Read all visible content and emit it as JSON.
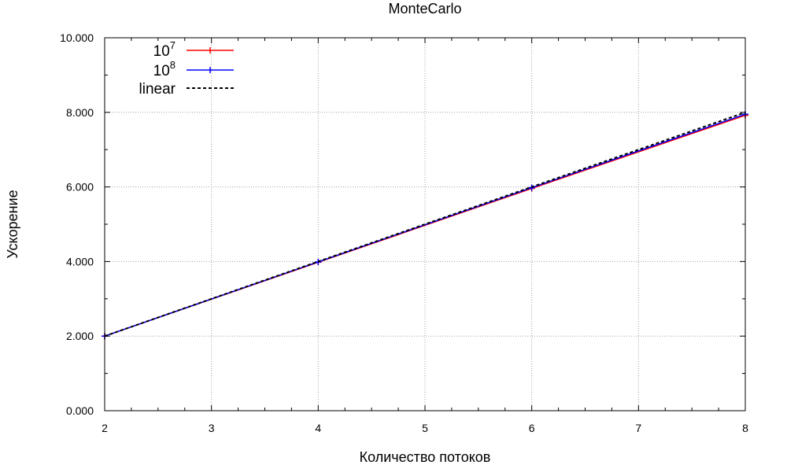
{
  "chart_data": {
    "type": "line",
    "title": "MonteCarlo",
    "xlabel": "Количество потоков",
    "ylabel": "Ускорение",
    "xlim": [
      2,
      8
    ],
    "ylim": [
      0,
      10
    ],
    "x_ticks": [
      2,
      3,
      4,
      5,
      6,
      7,
      8
    ],
    "y_ticks": [
      0,
      2,
      4,
      6,
      8,
      10
    ],
    "x_tick_labels": [
      "2",
      "3",
      "4",
      "5",
      "6",
      "7",
      "8"
    ],
    "y_tick_labels": [
      "0.000",
      "2.000",
      "4.000",
      "6.000",
      "8.000",
      "10.000"
    ],
    "grid": true,
    "legend_position": "top-left",
    "series": [
      {
        "name_base": "10",
        "name_exp": "7",
        "color": "#ff0000",
        "style": "solid-points",
        "x": [
          2,
          4,
          6,
          8
        ],
        "y": [
          2.0,
          3.98,
          5.96,
          7.92
        ]
      },
      {
        "name_base": "10",
        "name_exp": "8",
        "color": "#0000ff",
        "style": "solid-points",
        "x": [
          2,
          4,
          6,
          8
        ],
        "y": [
          2.0,
          3.99,
          5.98,
          7.95
        ]
      },
      {
        "name": "linear",
        "color": "#000000",
        "style": "dashed",
        "x": [
          2,
          8
        ],
        "y": [
          2,
          8
        ]
      }
    ]
  }
}
